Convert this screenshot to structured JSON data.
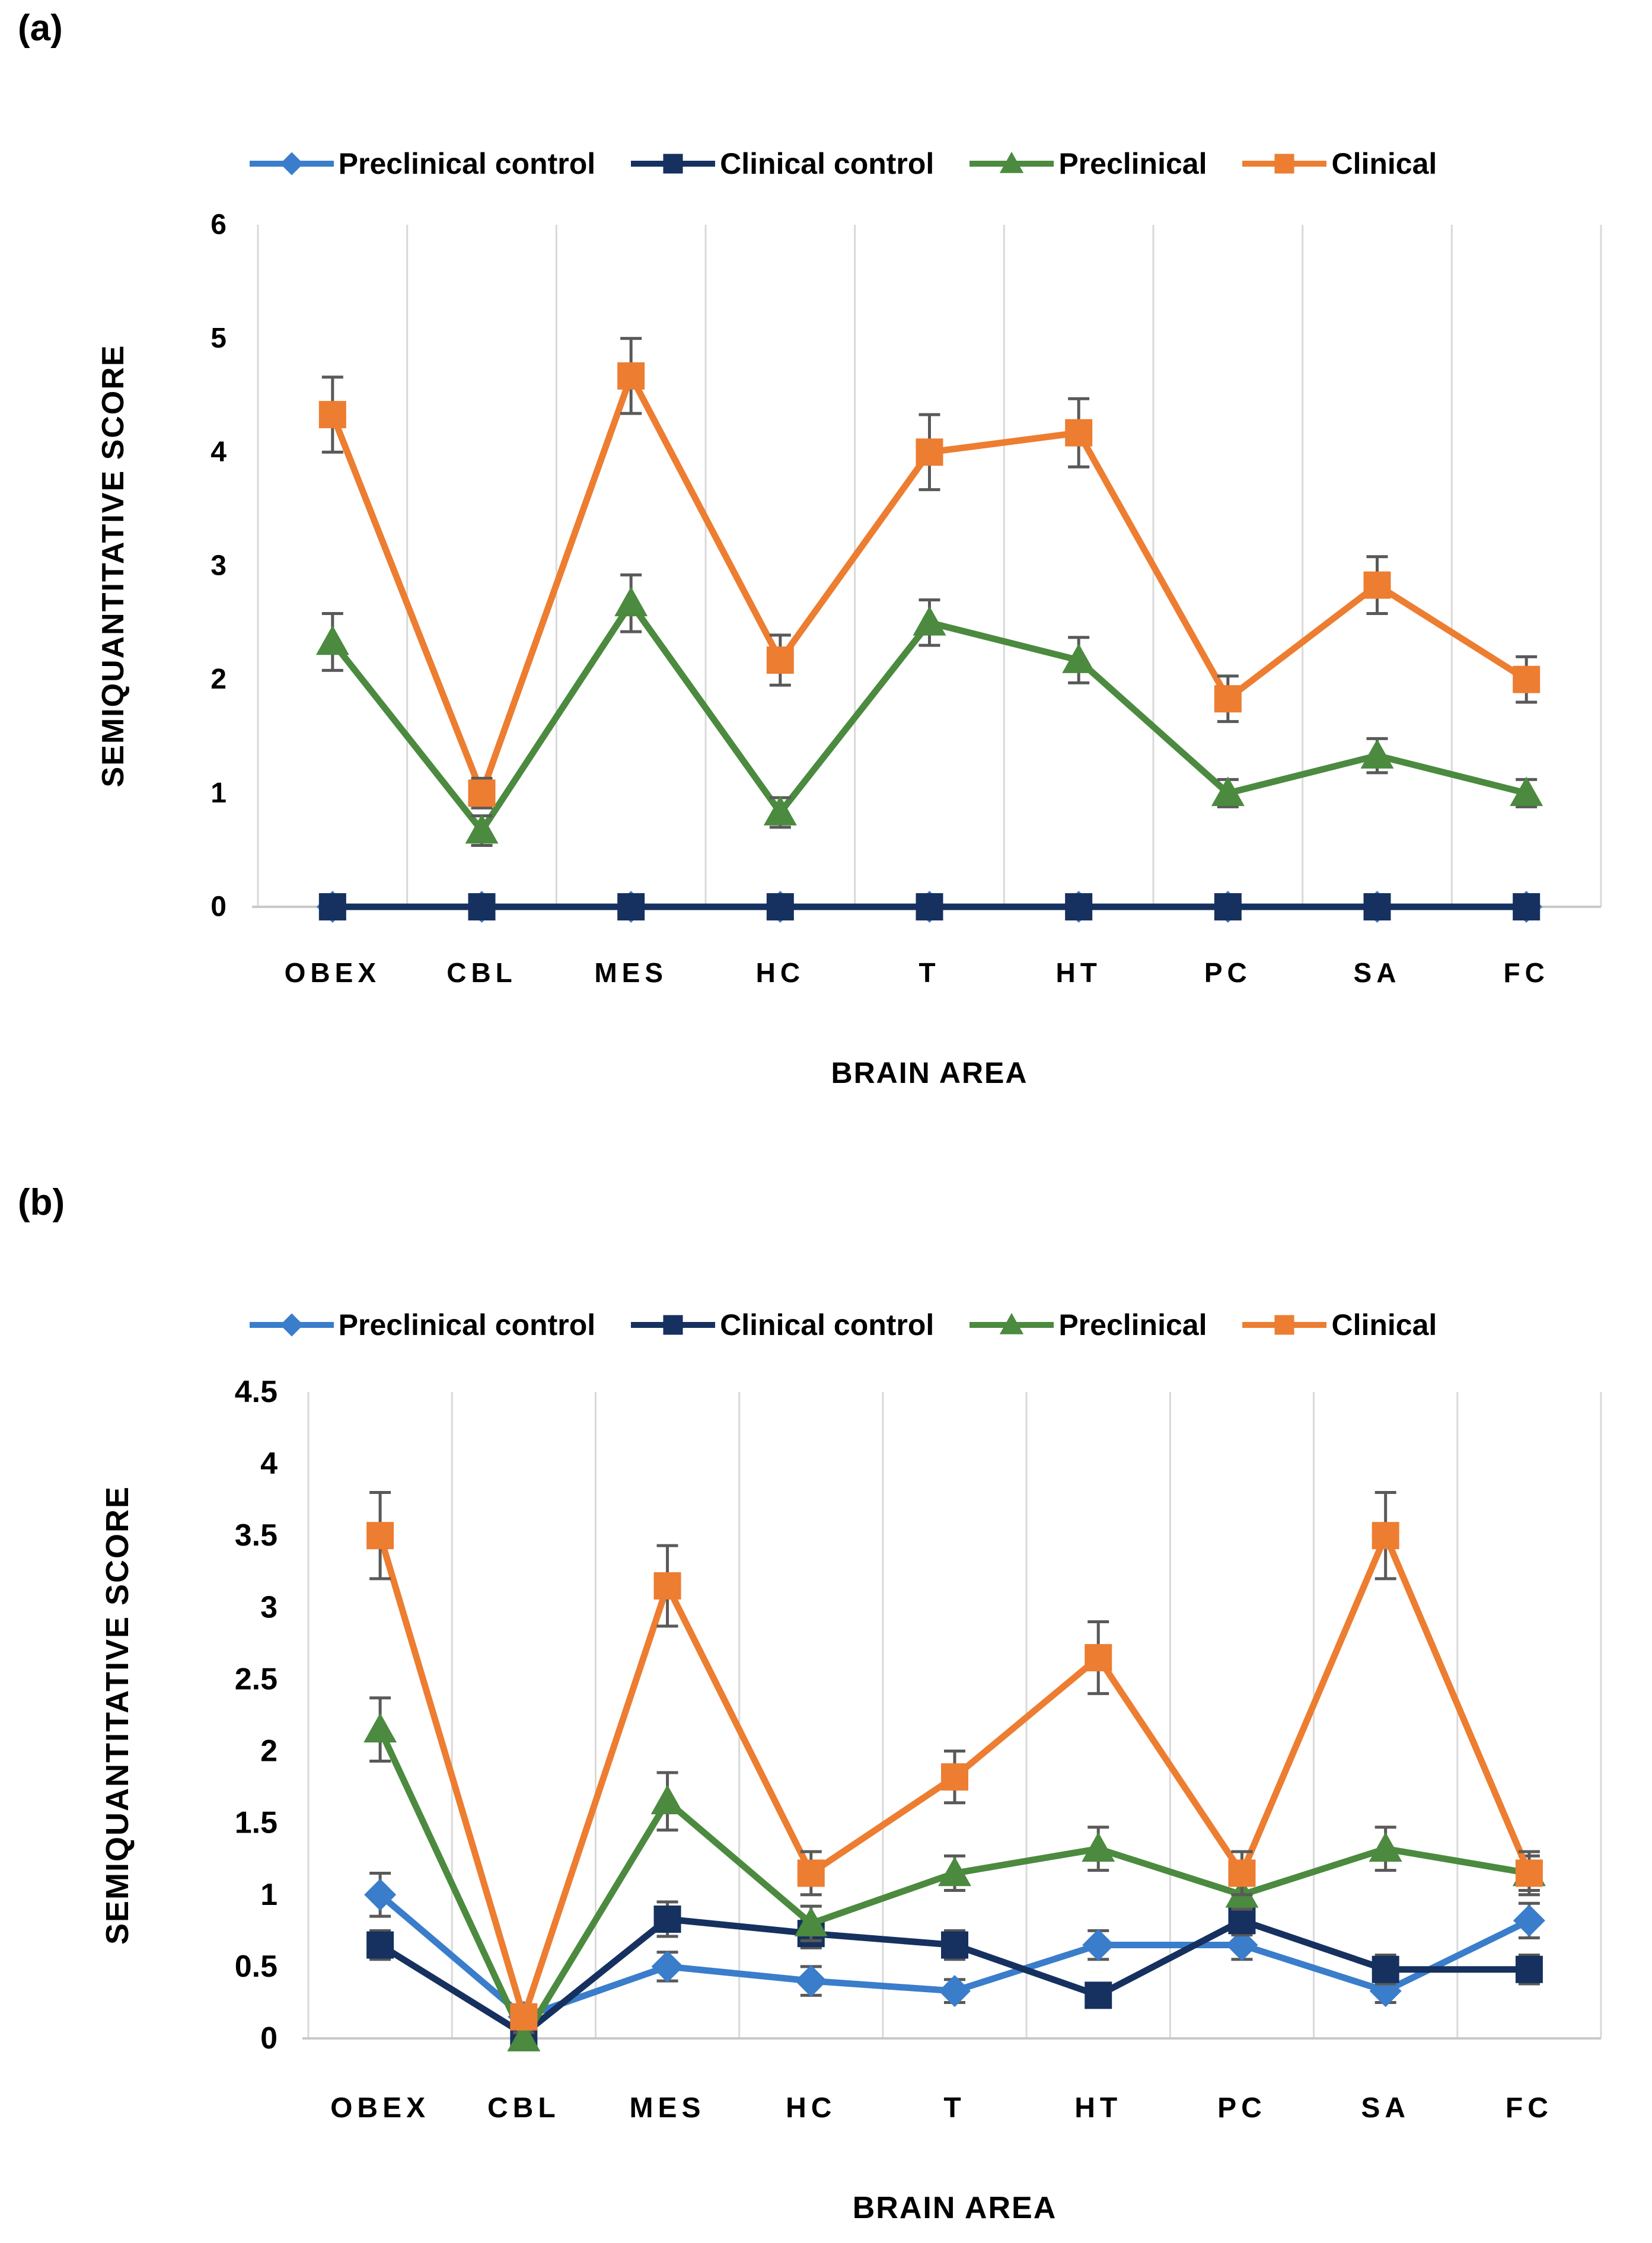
{
  "panels": [
    {
      "label": "(a)"
    },
    {
      "label": "(b)"
    }
  ],
  "colors": {
    "preclinical_control": "#3A7DCB",
    "clinical_control": "#16315F",
    "preclinical": "#4B8A3F",
    "clinical": "#ED7D31",
    "error_bar": "#595959",
    "gridline": "#D9D9D9",
    "axis_line": "#C9C9C9",
    "text": "#000000"
  },
  "chart_data": [
    {
      "id": "a",
      "type": "line",
      "panel_label": "(a)",
      "title": "",
      "xlabel": "BRAIN AREA",
      "ylabel": "SEMIQUANTITATIVE SCORE",
      "categories": [
        "OBEX",
        "CBL",
        "MES",
        "HC",
        "T",
        "HT",
        "PC",
        "SA",
        "FC"
      ],
      "ylim": [
        0,
        6
      ],
      "yticks": [
        "0",
        "1",
        "2",
        "3",
        "4",
        "5",
        "6"
      ],
      "grid": "vertical-only",
      "legend_position": "top-center",
      "error_bars": true,
      "series": [
        {
          "name": "Preclinical control",
          "marker": "diamond",
          "color": "#3A7DCB",
          "values": [
            0,
            0,
            0,
            0,
            0,
            0,
            0,
            0,
            0
          ],
          "errors": [
            0,
            0,
            0,
            0,
            0,
            0,
            0,
            0,
            0
          ]
        },
        {
          "name": "Clinical control",
          "marker": "square",
          "color": "#16315F",
          "values": [
            0,
            0,
            0,
            0,
            0,
            0,
            0,
            0,
            0
          ],
          "errors": [
            0,
            0,
            0,
            0,
            0,
            0,
            0,
            0,
            0
          ]
        },
        {
          "name": "Preclinical",
          "marker": "triangle",
          "color": "#4B8A3F",
          "values": [
            2.33,
            0.67,
            2.67,
            0.83,
            2.5,
            2.17,
            1.0,
            1.33,
            1.0
          ],
          "errors": [
            0.25,
            0.13,
            0.25,
            0.13,
            0.2,
            0.2,
            0.12,
            0.15,
            0.12
          ]
        },
        {
          "name": "Clinical",
          "marker": "square",
          "color": "#ED7D31",
          "values": [
            4.33,
            1.0,
            4.67,
            2.17,
            4.0,
            4.17,
            1.83,
            2.83,
            2.0
          ],
          "errors": [
            0.33,
            0.13,
            0.33,
            0.22,
            0.33,
            0.3,
            0.2,
            0.25,
            0.2
          ]
        }
      ]
    },
    {
      "id": "b",
      "type": "line",
      "panel_label": "(b)",
      "title": "",
      "xlabel": "BRAIN AREA",
      "ylabel": "SEMIQUANTITATIVE SCORE",
      "categories": [
        "OBEX",
        "CBL",
        "MES",
        "HC",
        "T",
        "HT",
        "PC",
        "SA",
        "FC"
      ],
      "ylim": [
        0,
        4.5
      ],
      "yticks": [
        "0",
        "0.5",
        "1",
        "1.5",
        "2",
        "2.5",
        "3",
        "3.5",
        "4",
        "4.5"
      ],
      "grid": "vertical-only",
      "legend_position": "top-center",
      "error_bars": true,
      "series": [
        {
          "name": "Preclinical control",
          "marker": "diamond",
          "color": "#3A7DCB",
          "values": [
            1.0,
            0.15,
            0.5,
            0.4,
            0.33,
            0.65,
            0.65,
            0.33,
            0.82
          ],
          "errors": [
            0.15,
            0.07,
            0.1,
            0.1,
            0.08,
            0.1,
            0.1,
            0.08,
            0.12
          ]
        },
        {
          "name": "Clinical control",
          "marker": "square",
          "color": "#16315F",
          "values": [
            0.65,
            0.03,
            0.83,
            0.73,
            0.65,
            0.3,
            0.82,
            0.48,
            0.48
          ],
          "errors": [
            0.1,
            0.04,
            0.12,
            0.1,
            0.1,
            0.08,
            0.1,
            0.1,
            0.1
          ]
        },
        {
          "name": "Preclinical",
          "marker": "triangle",
          "color": "#4B8A3F",
          "values": [
            2.15,
            0.0,
            1.65,
            0.8,
            1.15,
            1.32,
            1.0,
            1.32,
            1.15
          ],
          "errors": [
            0.22,
            0.04,
            0.2,
            0.12,
            0.12,
            0.15,
            0.1,
            0.15,
            0.12
          ]
        },
        {
          "name": "Clinical",
          "marker": "square",
          "color": "#ED7D31",
          "values": [
            3.5,
            0.15,
            3.15,
            1.15,
            1.82,
            2.65,
            1.15,
            3.5,
            1.15
          ],
          "errors": [
            0.3,
            0.07,
            0.28,
            0.15,
            0.18,
            0.25,
            0.15,
            0.3,
            0.15
          ]
        }
      ]
    }
  ]
}
